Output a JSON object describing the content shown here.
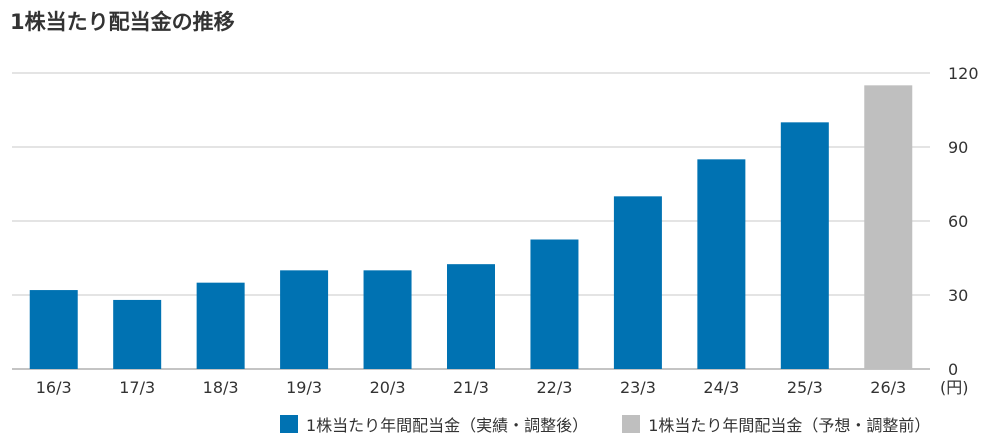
{
  "title": "1株当たり配当金の推移",
  "unit_label": "(円)",
  "colors": {
    "actual": "#0072b2",
    "forecast": "#bfbfbf",
    "grid": "#c8c8c8",
    "axis": "#888888"
  },
  "chart_data": {
    "type": "bar",
    "title": "1株当たり配当金の推移",
    "categories": [
      "16/3",
      "17/3",
      "18/3",
      "19/3",
      "20/3",
      "21/3",
      "22/3",
      "23/3",
      "24/3",
      "25/3",
      "26/3"
    ],
    "values": [
      32,
      28,
      35,
      40,
      40,
      42.5,
      52.5,
      70,
      85,
      100,
      115
    ],
    "bar_kind": [
      "actual",
      "actual",
      "actual",
      "actual",
      "actual",
      "actual",
      "actual",
      "actual",
      "actual",
      "actual",
      "forecast"
    ],
    "ylim": [
      0,
      120
    ],
    "yticks": [
      "0",
      "30",
      "60",
      "90",
      "120"
    ],
    "ytick_values": [
      0,
      30,
      60,
      90,
      120
    ],
    "y_axis_side": "right",
    "grid": true,
    "legend_position": "bottom",
    "legend": [
      {
        "label": "1株当たり年間配当金（実績・調整後）",
        "kind": "actual"
      },
      {
        "label": "1株当たり年間配当金（予想・調整前）",
        "kind": "forecast"
      }
    ]
  }
}
